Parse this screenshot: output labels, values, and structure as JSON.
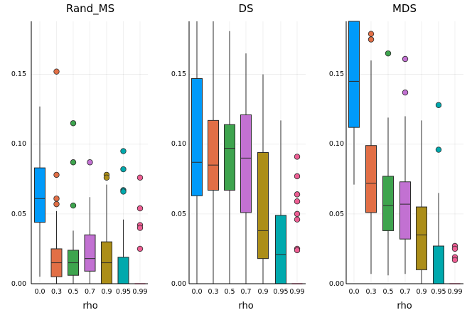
{
  "colors": [
    "#009AFA",
    "#E26F46",
    "#3EA44E",
    "#C271D2",
    "#AC8E18",
    "#00A9AD",
    "#ED5E93"
  ],
  "chart_data": [
    {
      "type": "box",
      "title": "Rand_MS",
      "xlabel": "rho",
      "ylabel": "",
      "categories": [
        "0.0",
        "0.3",
        "0.5",
        "0.7",
        "0.9",
        "0.95",
        "0.99"
      ],
      "ylim": [
        0,
        0.188
      ],
      "yticks": [
        0.0,
        0.05,
        0.1,
        0.15
      ],
      "ytick_labels": [
        "0.00",
        "0.05",
        "0.10",
        "0.15"
      ],
      "boxes": [
        {
          "whisker_low": 0.005,
          "q1": 0.044,
          "median": 0.061,
          "q3": 0.083,
          "whisker_high": 0.127,
          "outliers": []
        },
        {
          "whisker_low": 0.0,
          "q1": 0.005,
          "median": 0.015,
          "q3": 0.025,
          "whisker_high": 0.052,
          "outliers": [
            0.152,
            0.078,
            0.061,
            0.057
          ]
        },
        {
          "whisker_low": 0.0,
          "q1": 0.006,
          "median": 0.015,
          "q3": 0.024,
          "whisker_high": 0.038,
          "outliers": [
            0.115,
            0.087,
            0.056
          ]
        },
        {
          "whisker_low": 0.0,
          "q1": 0.009,
          "median": 0.018,
          "q3": 0.035,
          "whisker_high": 0.062,
          "outliers": [
            0.087
          ]
        },
        {
          "whisker_low": 0.0,
          "q1": 0.0,
          "median": 0.015,
          "q3": 0.03,
          "whisker_high": 0.071,
          "outliers": [
            0.078,
            0.076
          ]
        },
        {
          "whisker_low": 0.0,
          "q1": 0.0,
          "median": 0.0,
          "q3": 0.019,
          "whisker_high": 0.046,
          "outliers": [
            0.095,
            0.082,
            0.067,
            0.066
          ]
        },
        {
          "whisker_low": 0.0,
          "q1": 0.0,
          "median": 0.0,
          "q3": 0.0,
          "whisker_high": 0.0,
          "outliers": [
            0.076,
            0.054,
            0.042,
            0.04,
            0.025
          ]
        }
      ]
    },
    {
      "type": "box",
      "title": "DS",
      "xlabel": "rho",
      "ylabel": "",
      "categories": [
        "0.0",
        "0.3",
        "0.5",
        "0.7",
        "0.9",
        "0.95",
        "0.99"
      ],
      "ylim": [
        0,
        0.188
      ],
      "yticks": [
        0.0,
        0.05,
        0.1,
        0.15
      ],
      "ytick_labels": [
        "0.00",
        "0.05",
        "0.10",
        "0.15"
      ],
      "boxes": [
        {
          "whisker_low": 0.0,
          "q1": 0.063,
          "median": 0.087,
          "q3": 0.147,
          "whisker_high": 0.188,
          "outliers": []
        },
        {
          "whisker_low": 0.0,
          "q1": 0.067,
          "median": 0.085,
          "q3": 0.117,
          "whisker_high": 0.188,
          "outliers": []
        },
        {
          "whisker_low": 0.0,
          "q1": 0.067,
          "median": 0.097,
          "q3": 0.114,
          "whisker_high": 0.181,
          "outliers": []
        },
        {
          "whisker_low": 0.0,
          "q1": 0.051,
          "median": 0.09,
          "q3": 0.121,
          "whisker_high": 0.165,
          "outliers": []
        },
        {
          "whisker_low": 0.0,
          "q1": 0.018,
          "median": 0.038,
          "q3": 0.094,
          "whisker_high": 0.15,
          "outliers": []
        },
        {
          "whisker_low": 0.0,
          "q1": 0.0,
          "median": 0.021,
          "q3": 0.049,
          "whisker_high": 0.117,
          "outliers": []
        },
        {
          "whisker_low": 0.0,
          "q1": 0.0,
          "median": 0.0,
          "q3": 0.0,
          "whisker_high": 0.0,
          "outliers": [
            0.091,
            0.077,
            0.064,
            0.059,
            0.05,
            0.046,
            0.025,
            0.024
          ]
        }
      ]
    },
    {
      "type": "box",
      "title": "MDS",
      "xlabel": "rho",
      "ylabel": "",
      "categories": [
        "0.0",
        "0.3",
        "0.5",
        "0.7",
        "0.9",
        "0.95",
        "0.99"
      ],
      "ylim": [
        0,
        0.188
      ],
      "yticks": [
        0.0,
        0.05,
        0.1,
        0.15
      ],
      "ytick_labels": [
        "0.00",
        "0.05",
        "0.10",
        "0.15"
      ],
      "boxes": [
        {
          "whisker_low": 0.071,
          "q1": 0.112,
          "median": 0.145,
          "q3": 0.188,
          "whisker_high": 0.188,
          "outliers": []
        },
        {
          "whisker_low": 0.007,
          "q1": 0.051,
          "median": 0.072,
          "q3": 0.099,
          "whisker_high": 0.16,
          "outliers": [
            0.179,
            0.175
          ]
        },
        {
          "whisker_low": 0.006,
          "q1": 0.038,
          "median": 0.056,
          "q3": 0.077,
          "whisker_high": 0.119,
          "outliers": [
            0.165
          ]
        },
        {
          "whisker_low": 0.007,
          "q1": 0.032,
          "median": 0.057,
          "q3": 0.073,
          "whisker_high": 0.12,
          "outliers": [
            0.161,
            0.137
          ]
        },
        {
          "whisker_low": 0.0,
          "q1": 0.01,
          "median": 0.035,
          "q3": 0.055,
          "whisker_high": 0.117,
          "outliers": []
        },
        {
          "whisker_low": 0.0,
          "q1": 0.0,
          "median": 0.0,
          "q3": 0.027,
          "whisker_high": 0.065,
          "outliers": [
            0.128,
            0.096
          ]
        },
        {
          "whisker_low": 0.0,
          "q1": 0.0,
          "median": 0.0,
          "q3": 0.0,
          "whisker_high": 0.0,
          "outliers": [
            0.027,
            0.025,
            0.019,
            0.017
          ]
        }
      ]
    }
  ]
}
